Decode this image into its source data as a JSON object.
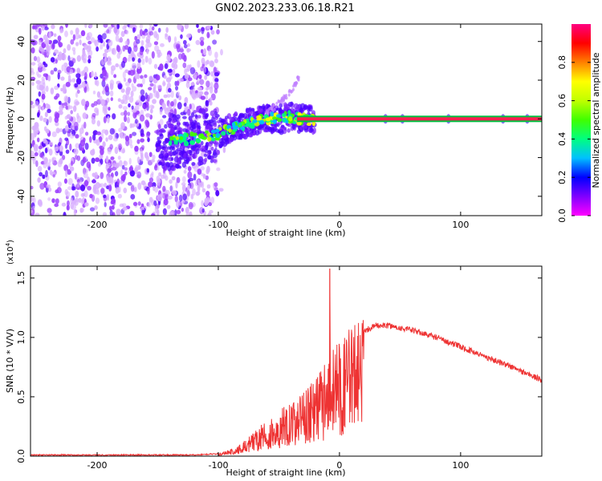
{
  "title": "GN02.2023.233.06.18.R21",
  "chart_data": [
    {
      "type": "heatmap",
      "xlabel": "Height of straight line (km)",
      "ylabel": "Frequency (Hz)",
      "xlim": [
        -255,
        167
      ],
      "ylim": [
        -50,
        49
      ],
      "xticks": [
        -200,
        -100,
        0,
        100
      ],
      "yticks": [
        -40,
        -20,
        0,
        20,
        40
      ],
      "colorbar": {
        "label": "Normalized spectral amplitude",
        "range": [
          0,
          1
        ],
        "ticks": [
          "0.0",
          "0.2",
          "0.4",
          "0.6",
          "0.8"
        ],
        "colors": [
          "#ff00ff",
          "#8000ff",
          "#0000ff",
          "#00c0ff",
          "#00ff80",
          "#40ff00",
          "#c0ff00",
          "#ffff00",
          "#ff8000",
          "#ff0000",
          "#ff0080"
        ]
      },
      "noise_region_x": [
        -255,
        -100
      ],
      "signal_track": {
        "x": [
          -140,
          -120,
          -100,
          -90,
          -80,
          -70,
          -60,
          -50,
          -40,
          -30,
          -20,
          -10,
          0,
          50,
          100,
          167
        ],
        "y": [
          -12,
          -10,
          -8,
          -5,
          -3,
          -1,
          0,
          0,
          1,
          0,
          -1,
          -2,
          0,
          0,
          0,
          0
        ]
      },
      "branch": {
        "x": [
          -60,
          -50,
          -40,
          -33
        ],
        "y": [
          3,
          8,
          14,
          22
        ]
      },
      "line_y": 0
    },
    {
      "type": "line",
      "xlabel": "Height of straight line (km)",
      "ylabel": "SNR (10 * V/V)",
      "yscale_label": "(x10",
      "yscale_exp": "4",
      "xlim": [
        -255,
        167
      ],
      "ylim": [
        0,
        1.6
      ],
      "xticks": [
        -200,
        -100,
        0,
        100
      ],
      "yticks": [
        "0.0",
        "0.5",
        "1.0",
        "1.5"
      ],
      "series": [
        {
          "color": "#ee3333",
          "envelope_x": [
            -255,
            -120,
            -100,
            -90,
            -80,
            -70,
            -60,
            -50,
            -40,
            -30,
            -20,
            -15,
            -10,
            -5,
            0,
            10,
            20,
            30,
            40,
            60,
            80,
            100,
            120,
            140,
            167
          ],
          "envelope_y": [
            0.01,
            0.01,
            0.02,
            0.05,
            0.1,
            0.18,
            0.26,
            0.32,
            0.38,
            0.45,
            0.55,
            0.6,
            0.68,
            0.75,
            0.82,
            0.95,
            1.05,
            1.1,
            1.1,
            1.06,
            1.0,
            0.92,
            0.84,
            0.76,
            0.64
          ],
          "spike": {
            "x": -8,
            "y": 1.58
          }
        }
      ]
    }
  ]
}
